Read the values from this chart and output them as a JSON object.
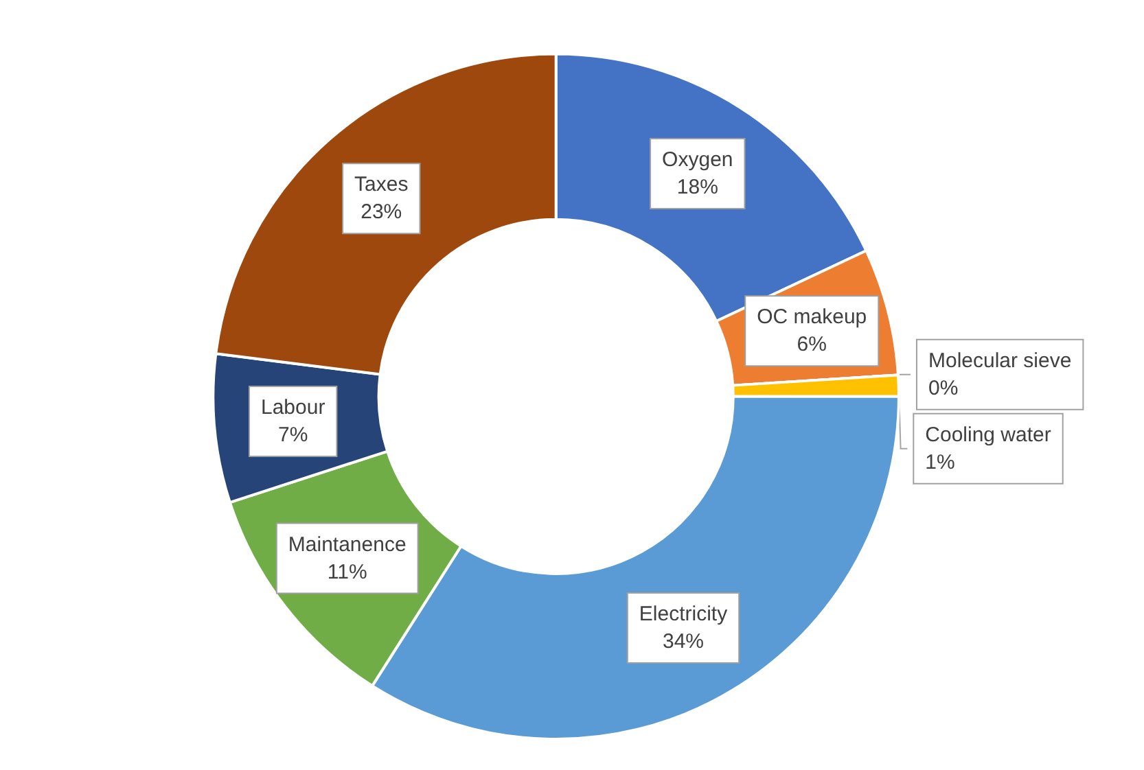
{
  "chart_data": {
    "type": "donut",
    "categories": [
      "Oxygen",
      "OC makeup",
      "Molecular sieve",
      "Cooling water",
      "Electricity",
      "Maintanence",
      "Labour",
      "Taxes"
    ],
    "values": [
      18,
      6,
      0,
      1,
      34,
      11,
      7,
      23
    ],
    "value_labels": [
      "18%",
      "6%",
      "0%",
      "1%",
      "34%",
      "11%",
      "7%",
      "23%"
    ],
    "colors": [
      "#4472c4",
      "#ed7d31",
      "#a5a5a5",
      "#ffc000",
      "#5b9bd5",
      "#70ad47",
      "#264478",
      "#9e480e"
    ]
  }
}
